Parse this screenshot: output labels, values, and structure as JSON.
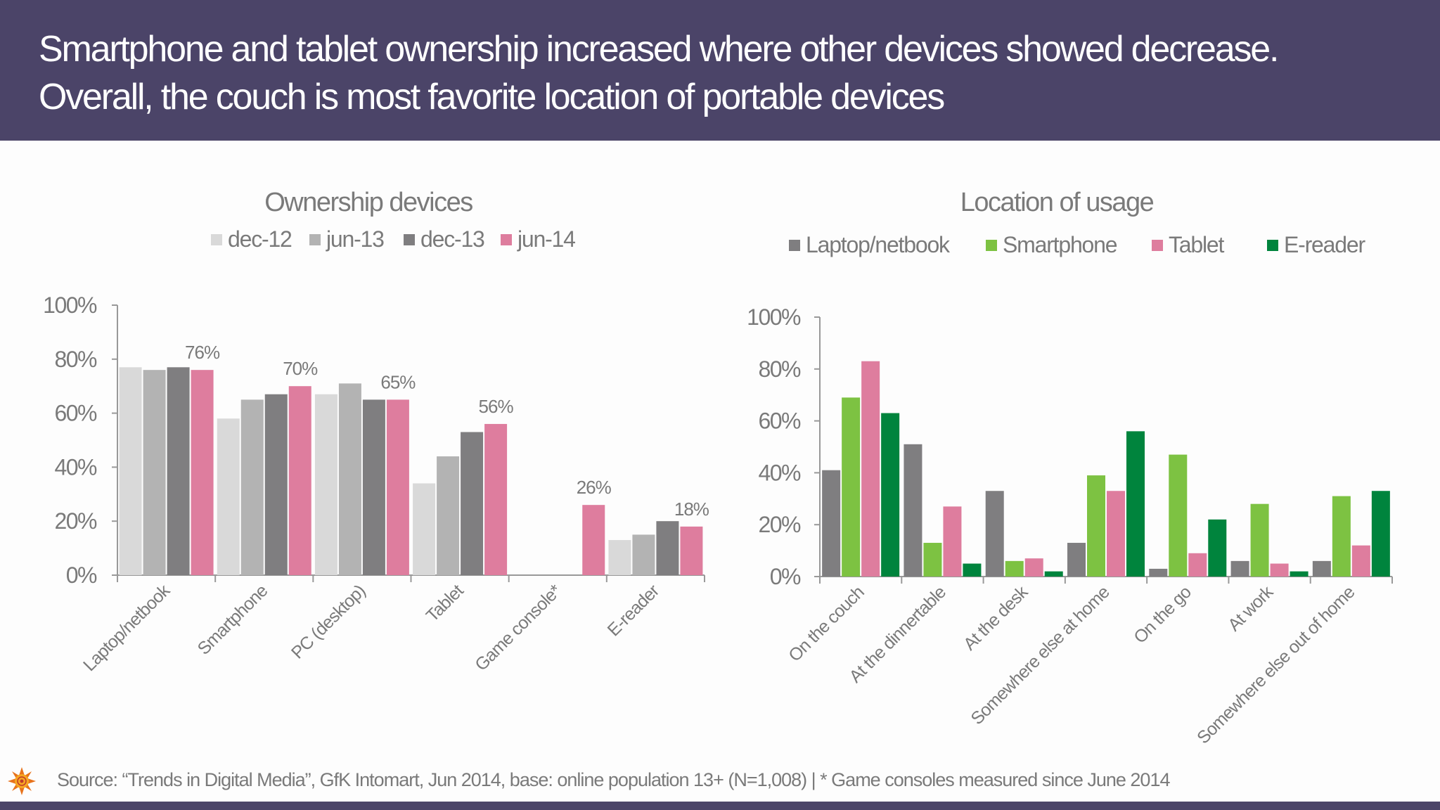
{
  "header": {
    "line1": "Smartphone and tablet ownership increased where other devices showed decrease.",
    "line2": "Overall, the couch is most favorite location of portable devices"
  },
  "footer": {
    "source": "Source: “Trends in Digital Media”, GfK Intomart, Jun 2014, base: online population 13+ (N=1,008) | * Game consoles measured since June 2014",
    "logo": "sun-logo"
  },
  "chart_data": [
    {
      "type": "bar",
      "title": "Ownership devices",
      "categories": [
        "Laptop/netbook",
        "Smartphone",
        "PC (desktop)",
        "Tablet",
        "Game console*",
        "E-reader"
      ],
      "series": [
        {
          "name": "dec-12",
          "color": "#d9d9d9",
          "values": [
            77,
            58,
            67,
            34,
            null,
            13
          ]
        },
        {
          "name": "jun-13",
          "color": "#b3b3b3",
          "values": [
            76,
            65,
            71,
            44,
            null,
            15
          ]
        },
        {
          "name": "dec-13",
          "color": "#7f7e80",
          "values": [
            77,
            67,
            65,
            53,
            null,
            20
          ]
        },
        {
          "name": "jun-14",
          "color": "#de7d9e",
          "values": [
            76,
            70,
            65,
            56,
            26,
            18
          ]
        }
      ],
      "data_labels": {
        "series": "jun-14",
        "labels": [
          "76%",
          "70%",
          "65%",
          "56%",
          "26%",
          "18%"
        ]
      },
      "yticks": [
        "0%",
        "20%",
        "40%",
        "60%",
        "80%",
        "100%"
      ],
      "ylim": [
        0,
        100
      ],
      "legend": "top",
      "grid": false
    },
    {
      "type": "bar",
      "title": "Location of usage",
      "categories": [
        "On the couch",
        "At the dinnertable",
        "At the desk",
        "Somewhere else at home",
        "On the go",
        "At work",
        "Somewhere else out of home"
      ],
      "series": [
        {
          "name": "Laptop/netbook",
          "color": "#7f7e80",
          "values": [
            41,
            51,
            33,
            13,
            3,
            6,
            6
          ]
        },
        {
          "name": "Smartphone",
          "color": "#7dc242",
          "values": [
            69,
            13,
            6,
            39,
            47,
            28,
            31
          ]
        },
        {
          "name": "Tablet",
          "color": "#de7d9e",
          "values": [
            83,
            27,
            7,
            33,
            9,
            5,
            12
          ]
        },
        {
          "name": "E-reader",
          "color": "#00843d",
          "values": [
            63,
            5,
            2,
            56,
            22,
            2,
            33
          ]
        }
      ],
      "yticks": [
        "0%",
        "20%",
        "40%",
        "60%",
        "80%",
        "100%"
      ],
      "ylim": [
        0,
        100
      ],
      "legend": "top",
      "grid": false
    }
  ]
}
